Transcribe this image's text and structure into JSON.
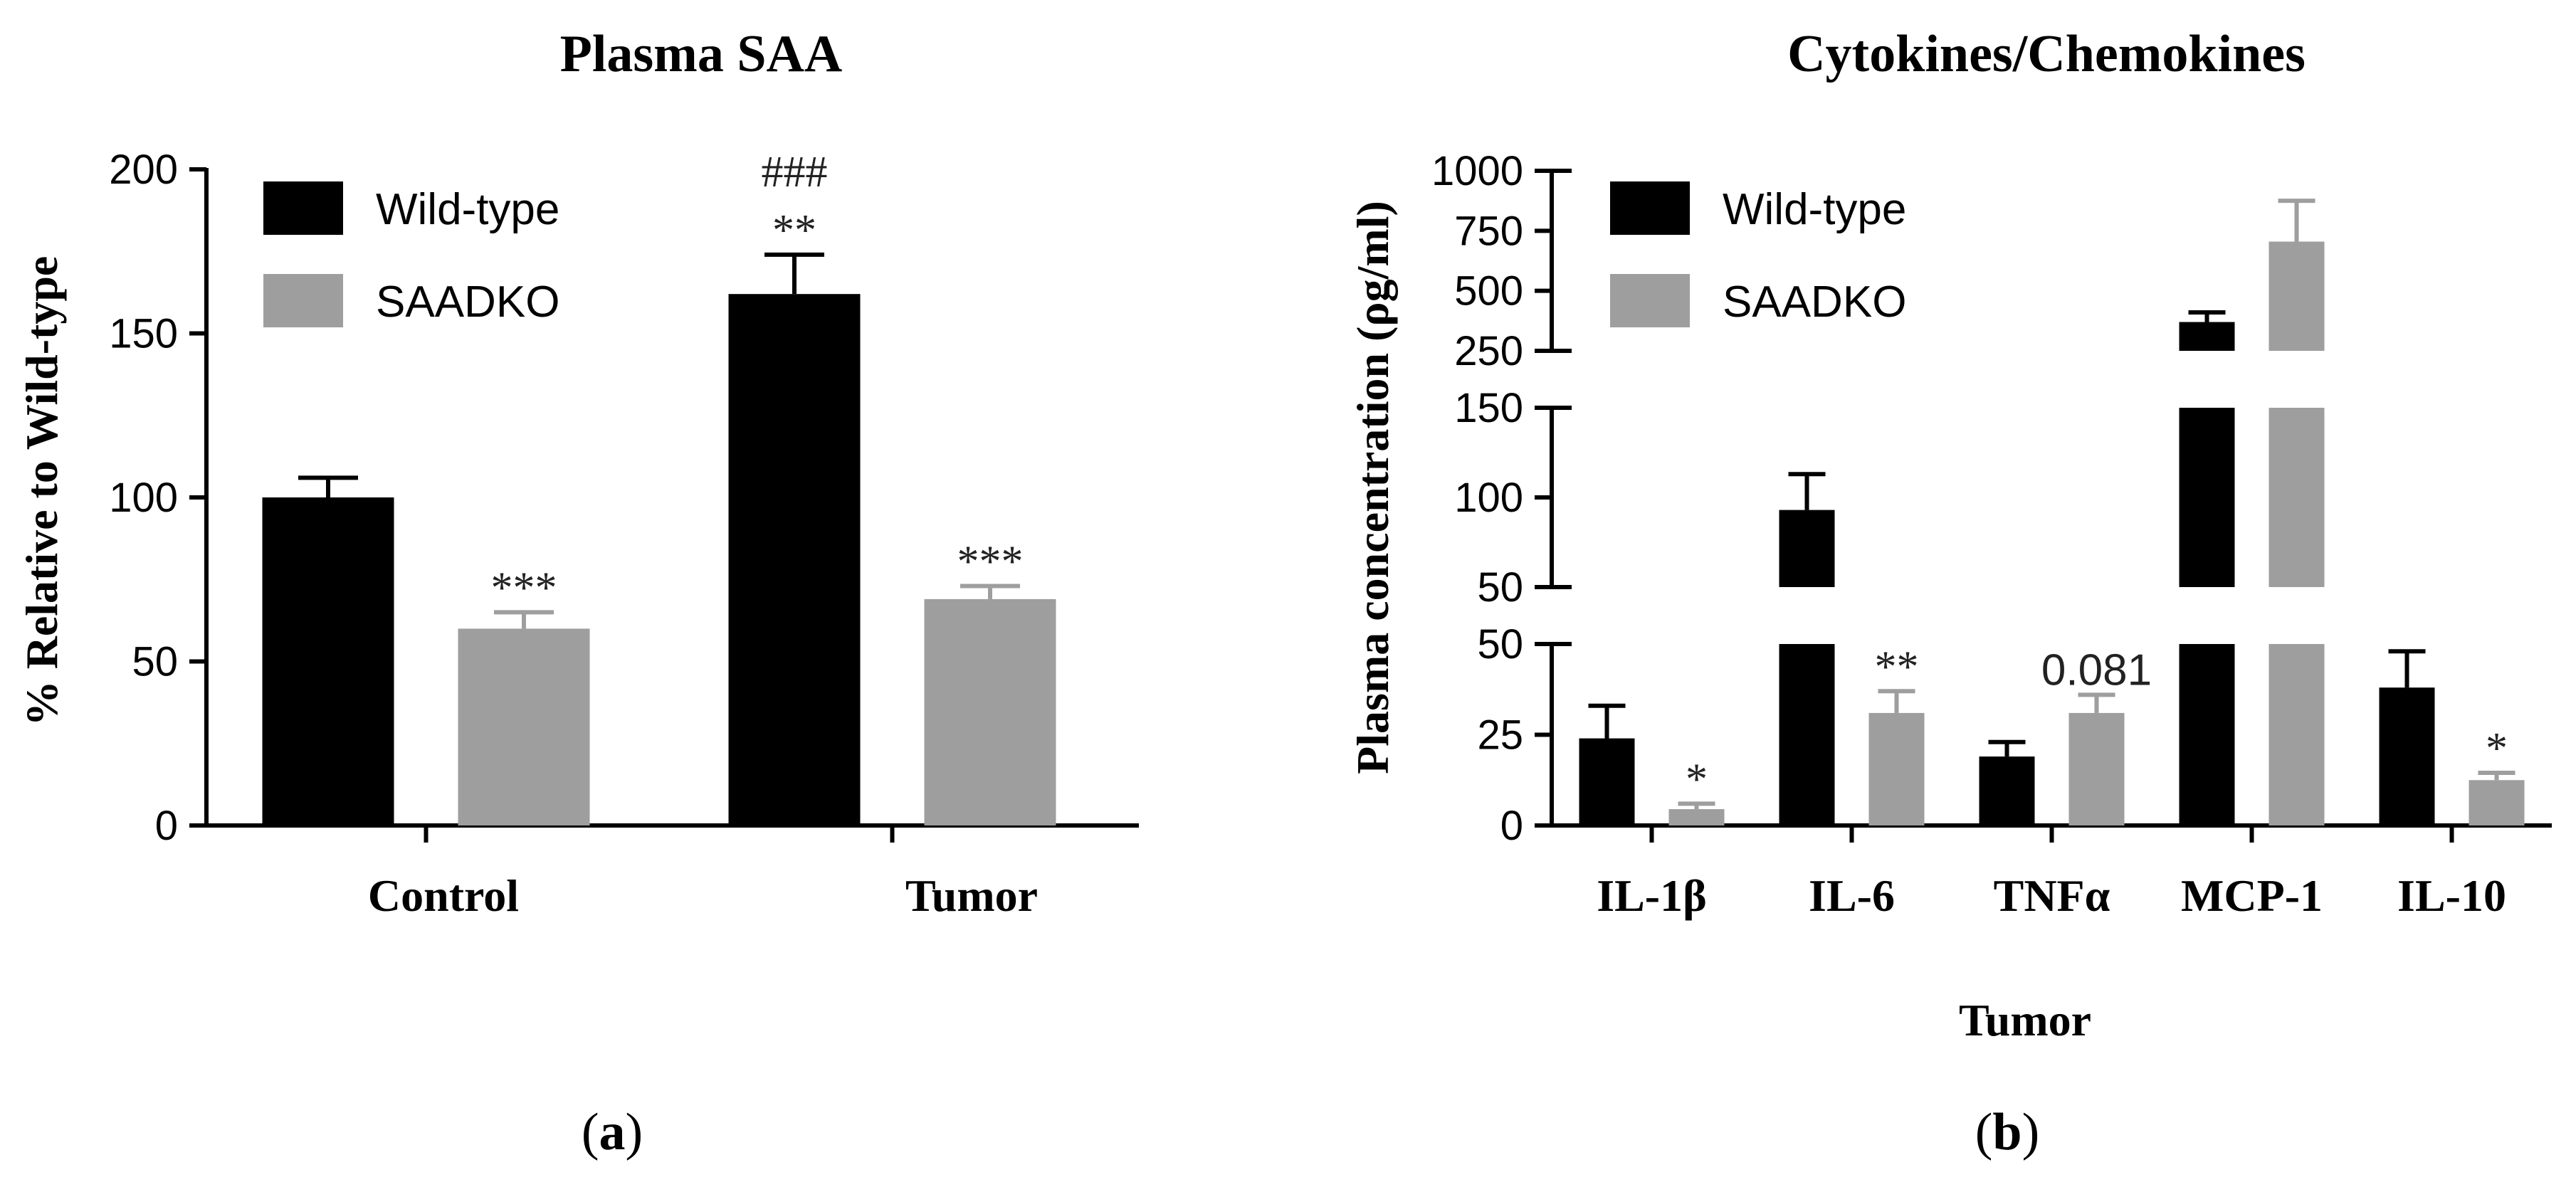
{
  "colors": {
    "wild_type": "#000000",
    "saadko": "#9e9e9e",
    "axis": "#000000"
  },
  "panel_labels": {
    "a": "a",
    "b": "b"
  },
  "chart_data": [
    {
      "type": "bar",
      "title": "Plasma SAA",
      "xlabel": "",
      "ylabel": "% Relative to Wild-type",
      "ylim": [
        0,
        200
      ],
      "yticks": [
        "0",
        "50",
        "100",
        "150",
        "200"
      ],
      "categories": [
        "Control",
        "Tumor"
      ],
      "legend": [
        "Wild-type",
        "SAADKO"
      ],
      "legend_position": "top-left",
      "series": [
        {
          "name": "Wild-type",
          "values": [
            100,
            162
          ],
          "errors": [
            6,
            12
          ],
          "labels": [
            "",
            "**"
          ]
        },
        {
          "name": "SAADKO",
          "values": [
            60,
            69
          ],
          "errors": [
            5,
            4
          ],
          "labels": [
            "***",
            "***"
          ]
        }
      ],
      "annotations": [
        {
          "category": "Tumor",
          "series": "Wild-type",
          "text": "###"
        }
      ]
    },
    {
      "type": "bar",
      "title": "Cytokines/Chemokines",
      "xlabel": "Tumor",
      "ylabel": "Plasma concentration (ρg/ml)",
      "axis_breaks": true,
      "segments": [
        {
          "range": [
            0,
            50
          ],
          "ticks": [
            "0",
            "25",
            "50"
          ]
        },
        {
          "range": [
            50,
            150
          ],
          "ticks": [
            "50",
            "100",
            "150"
          ]
        },
        {
          "range": [
            250,
            1000
          ],
          "ticks": [
            "250",
            "500",
            "750",
            "1000"
          ]
        }
      ],
      "categories": [
        "IL-1β",
        "IL-6",
        "TNFα",
        "MCP-1",
        "IL-10"
      ],
      "legend": [
        "Wild-type",
        "SAADKO"
      ],
      "legend_position": "top-left",
      "series": [
        {
          "name": "Wild-type",
          "values": [
            24,
            93,
            19,
            370,
            38
          ],
          "errors": [
            9,
            20,
            4,
            40,
            10
          ],
          "labels": [
            "",
            "",
            "",
            "",
            ""
          ]
        },
        {
          "name": "SAADKO",
          "values": [
            4.5,
            31,
            31,
            705,
            12.5
          ],
          "errors": [
            1.5,
            6,
            5,
            170,
            2
          ],
          "labels": [
            "*",
            "**",
            "0.081",
            "",
            "*"
          ]
        }
      ]
    }
  ]
}
